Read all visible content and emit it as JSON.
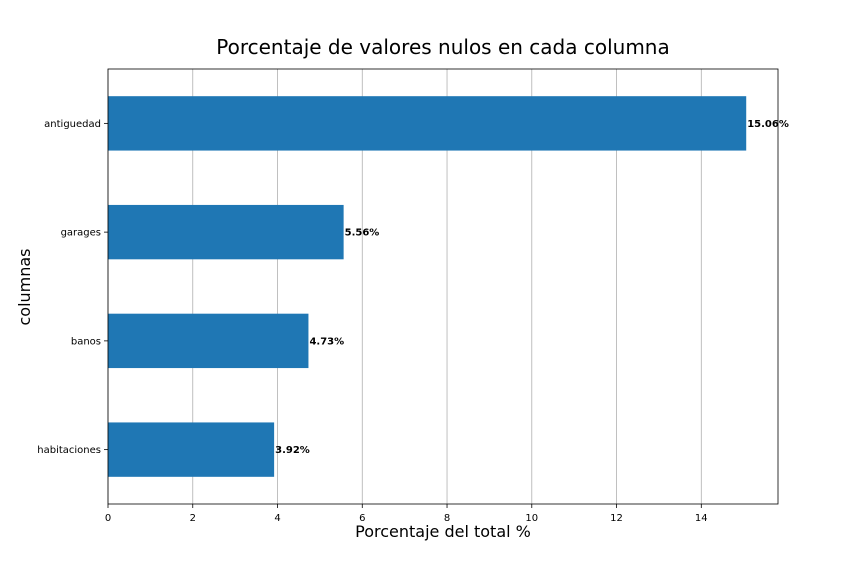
{
  "chart_data": {
    "type": "bar",
    "orientation": "horizontal",
    "title": "Porcentaje de valores nulos en cada columna",
    "xlabel": "Porcentaje del total %",
    "ylabel": "columnas",
    "categories": [
      "antiguedad",
      "garages",
      "banos",
      "habitaciones"
    ],
    "values": [
      15.06,
      5.56,
      4.73,
      3.92
    ],
    "data_labels": [
      "15.06%",
      "5.56%",
      "4.73%",
      "3.92%"
    ],
    "xlim": [
      0,
      15.81
    ],
    "xticks": [
      0,
      2,
      4,
      6,
      8,
      10,
      12,
      14
    ],
    "xtick_labels": [
      "0",
      "2",
      "4",
      "6",
      "8",
      "10",
      "12",
      "14"
    ],
    "grid": "x-axis vertical lines",
    "bar_color": "#1f77b4"
  }
}
